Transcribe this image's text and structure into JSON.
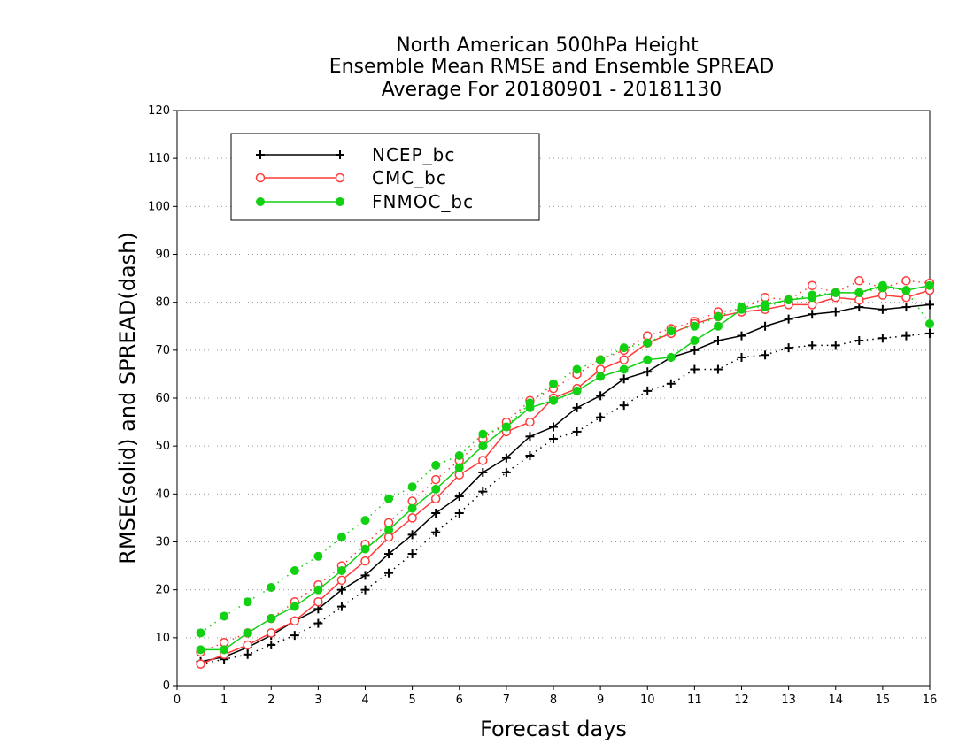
{
  "chart_data": {
    "type": "line",
    "title_lines": [
      "North American 500hPa Height",
      "Ensemble Mean RMSE and Ensemble SPREAD",
      "Average For 20180901 - 20181130"
    ],
    "xlabel": "Forecast days",
    "ylabel": "RMSE(solid) and SPREAD(dash)",
    "xlim": [
      0,
      16
    ],
    "ylim": [
      0,
      120
    ],
    "x_ticks": [
      0,
      1,
      2,
      3,
      4,
      5,
      6,
      7,
      8,
      9,
      10,
      11,
      12,
      13,
      14,
      15,
      16
    ],
    "y_ticks": [
      0,
      10,
      20,
      30,
      40,
      50,
      60,
      70,
      80,
      90,
      100,
      110,
      120
    ],
    "grid": "horizontal dotted",
    "legend_position": "top-left",
    "x": [
      0.5,
      1,
      1.5,
      2,
      2.5,
      3,
      3.5,
      4,
      4.5,
      5,
      5.5,
      6,
      6.5,
      7,
      7.5,
      8,
      8.5,
      9,
      9.5,
      10,
      10.5,
      11,
      11.5,
      12,
      12.5,
      13,
      13.5,
      14,
      14.5,
      15,
      15.5,
      16
    ],
    "series": [
      {
        "name": "NCEP_bc",
        "color": "#000000",
        "marker": "plus",
        "rmse": [
          5,
          6,
          8,
          10.5,
          13.5,
          16,
          20,
          23,
          27.5,
          31.5,
          36,
          39.5,
          44.5,
          47.5,
          52,
          54,
          58,
          60.5,
          64,
          65.5,
          68.5,
          70,
          72,
          73,
          75,
          76.5,
          77.5,
          78,
          79,
          78.5,
          79,
          79.5
        ],
        "spread": [
          4.5,
          5.5,
          6.5,
          8.5,
          10.5,
          13,
          16.5,
          20,
          23.5,
          27.5,
          32,
          36,
          40.5,
          44.5,
          48,
          51.5,
          53,
          56,
          58.5,
          61.5,
          63,
          66,
          66,
          68.5,
          69,
          70.5,
          71,
          71,
          72,
          72.5,
          73,
          73.5
        ]
      },
      {
        "name": "CMC_bc",
        "color": "#ff3b3b",
        "marker": "open-circle",
        "rmse": [
          4.5,
          6.5,
          8.5,
          11,
          13.5,
          17.5,
          22,
          26,
          31,
          35,
          39,
          44,
          47,
          53,
          55,
          60,
          62,
          66,
          68,
          71.5,
          73.5,
          75.5,
          77,
          78,
          78.5,
          79.5,
          79.5,
          81,
          80.5,
          81.5,
          81,
          82.5
        ],
        "spread": [
          7,
          9,
          11,
          14,
          17.5,
          21,
          25,
          29.5,
          34,
          38.5,
          43,
          47,
          51.5,
          55,
          59.5,
          62,
          65,
          68,
          70,
          73,
          74.5,
          76,
          78,
          78.5,
          81,
          80.5,
          83.5,
          82,
          84.5,
          83,
          84.5,
          84
        ]
      },
      {
        "name": "FNMOC_bc",
        "color": "#12d012",
        "marker": "filled-circle",
        "rmse": [
          7.5,
          7.5,
          11,
          14,
          16.5,
          20,
          24,
          28.5,
          32.5,
          37,
          41,
          45.5,
          50,
          54,
          58,
          59.5,
          61.5,
          64.5,
          66,
          68,
          68.5,
          72,
          75,
          78.5,
          79.5,
          80.5,
          81,
          82,
          82,
          83.5,
          82.5,
          83.5
        ],
        "spread": [
          11,
          14.5,
          17.5,
          20.5,
          24,
          27,
          31,
          34.5,
          39,
          41.5,
          46,
          48,
          52.5,
          54,
          59,
          63,
          66,
          68,
          70.5,
          71.5,
          74,
          75,
          77,
          79,
          79,
          80.5,
          81.5,
          82,
          82,
          83,
          82.5,
          75.5
        ]
      }
    ]
  }
}
